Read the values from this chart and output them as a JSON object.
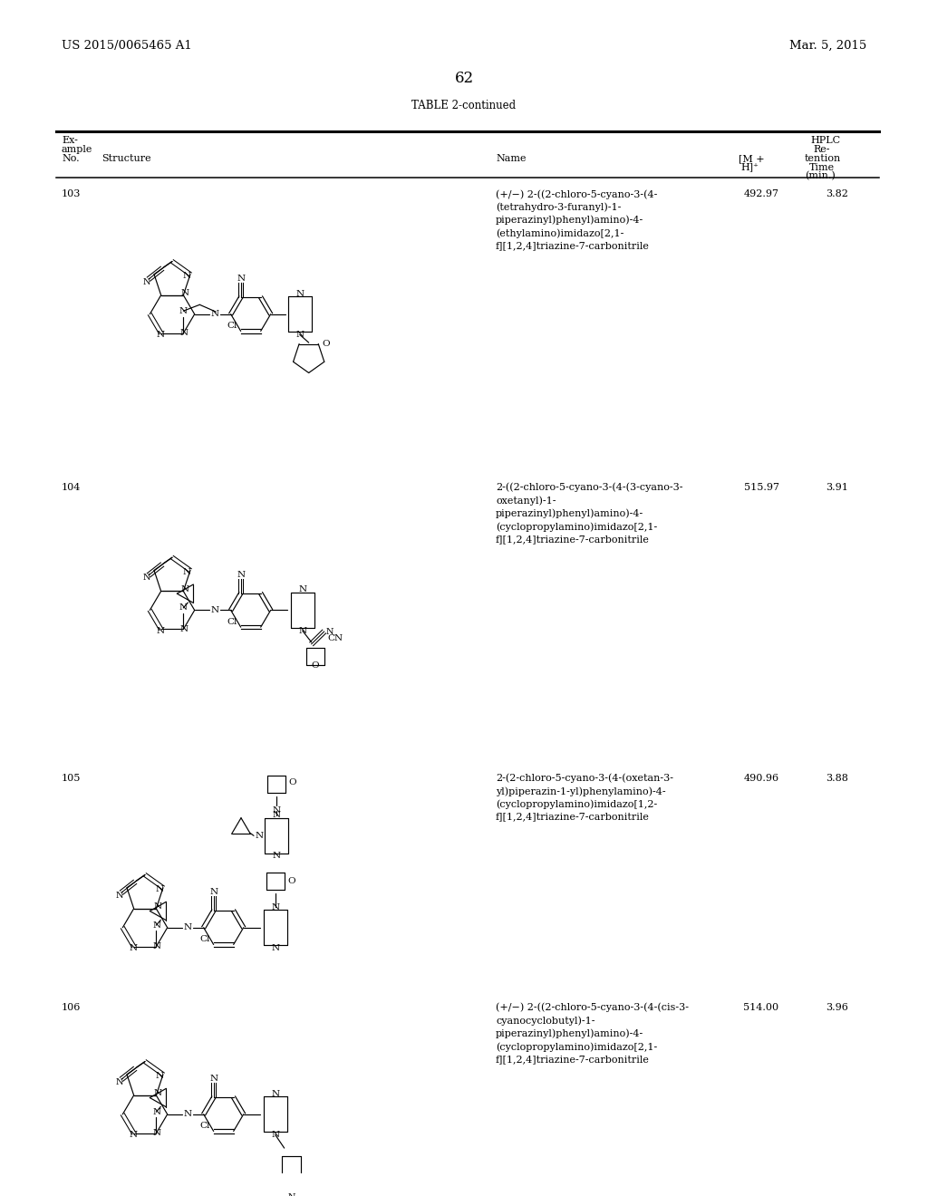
{
  "patent_number": "US 2015/0065465 A1",
  "patent_date": "Mar. 5, 2015",
  "page_number": "62",
  "table_title": "TABLE 2-continued",
  "rows": [
    {
      "example": "103",
      "name": "(+/−) 2-((2-chloro-5-cyano-3-(4-\n(tetrahydro-3-furanyl)-1-\npiperazinyl)phenyl)amino)-4-\n(ethylamino)imidazo[2,1-\nf][1,2,4]triazine-7-carbonitrile",
      "mh": "492.97",
      "hplc": "3.82"
    },
    {
      "example": "104",
      "name": "2-((2-chloro-5-cyano-3-(4-(3-cyano-3-\noxetanyl)-1-\npiperazinyl)phenyl)amino)-4-\n(cyclopropylamino)imidazo[2,1-\nf][1,2,4]triazine-7-carbonitrile",
      "mh": "515.97",
      "hplc": "3.91"
    },
    {
      "example": "105",
      "name": "2-(2-chloro-5-cyano-3-(4-(oxetan-3-\nyl)piperazin-1-yl)phenylamino)-4-\n(cyclopropylamino)imidazo[1,2-\nf][1,2,4]triazine-7-carbonitrile",
      "mh": "490.96",
      "hplc": "3.88"
    },
    {
      "example": "106",
      "name": "(+/−) 2-((2-chloro-5-cyano-3-(4-(cis-3-\ncyanocyclobutyl)-1-\npiperazinyl)phenyl)amino)-4-\n(cyclopropylamino)imidazo[2,1-\nf][1,2,4]triazine-7-carbonitrile",
      "mh": "514.00",
      "hplc": "3.96"
    }
  ],
  "bg_color": "#ffffff",
  "text_color": "#000000"
}
